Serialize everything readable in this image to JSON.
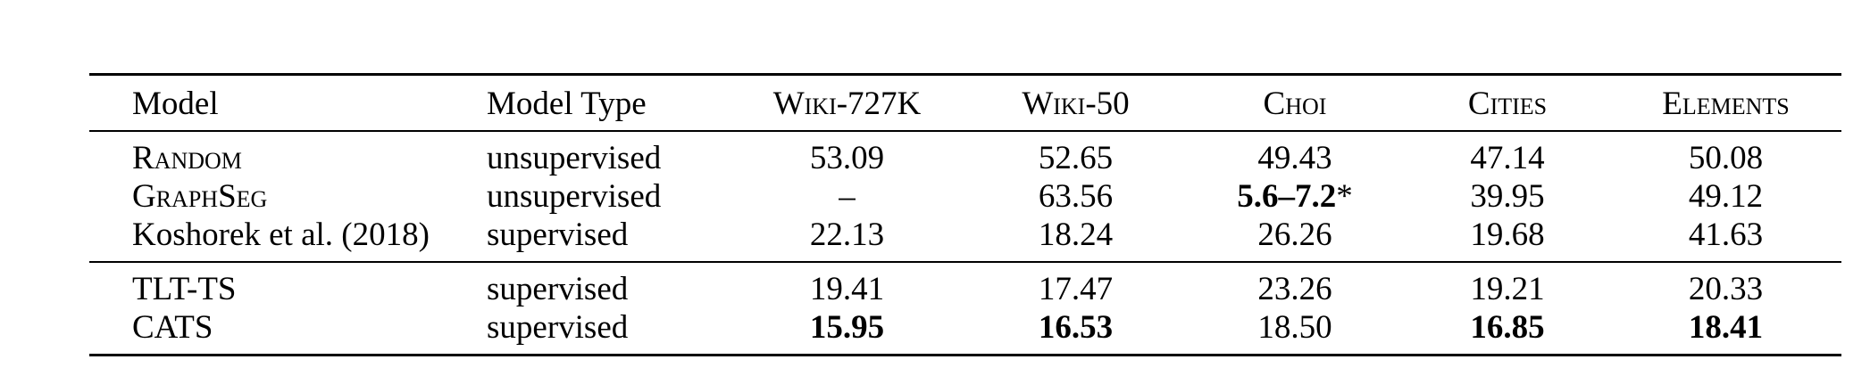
{
  "table": {
    "columns": [
      "Model",
      "Model Type",
      "Wiki-727K",
      "Wiki-50",
      "Choi",
      "Cities",
      "Elements"
    ],
    "groups": [
      [
        {
          "model": "Random",
          "type": "unsupervised",
          "wiki727k": "53.09",
          "wiki50": "52.65",
          "choi": "49.43",
          "choi_suffix": "",
          "cities": "47.14",
          "elements": "50.08"
        },
        {
          "model": "GraphSeg",
          "type": "unsupervised",
          "wiki727k": "–",
          "wiki50": "63.56",
          "choi": "5.6–7.2",
          "choi_suffix": "*",
          "cities": "39.95",
          "elements": "49.12"
        },
        {
          "model": "Koshorek et al. (2018)",
          "type": "supervised",
          "wiki727k": "22.13",
          "wiki50": "18.24",
          "choi": "26.26",
          "choi_suffix": "",
          "cities": "19.68",
          "elements": "41.63"
        }
      ],
      [
        {
          "model": "TLT-TS",
          "type": "supervised",
          "wiki727k": "19.41",
          "wiki50": "17.47",
          "choi": "23.26",
          "choi_suffix": "",
          "cities": "19.21",
          "elements": "20.33"
        },
        {
          "model": "CATS",
          "type": "supervised",
          "wiki727k": "15.95",
          "wiki50": "16.53",
          "choi": "18.50",
          "choi_suffix": "",
          "cities": "16.85",
          "elements": "18.41"
        }
      ]
    ]
  }
}
